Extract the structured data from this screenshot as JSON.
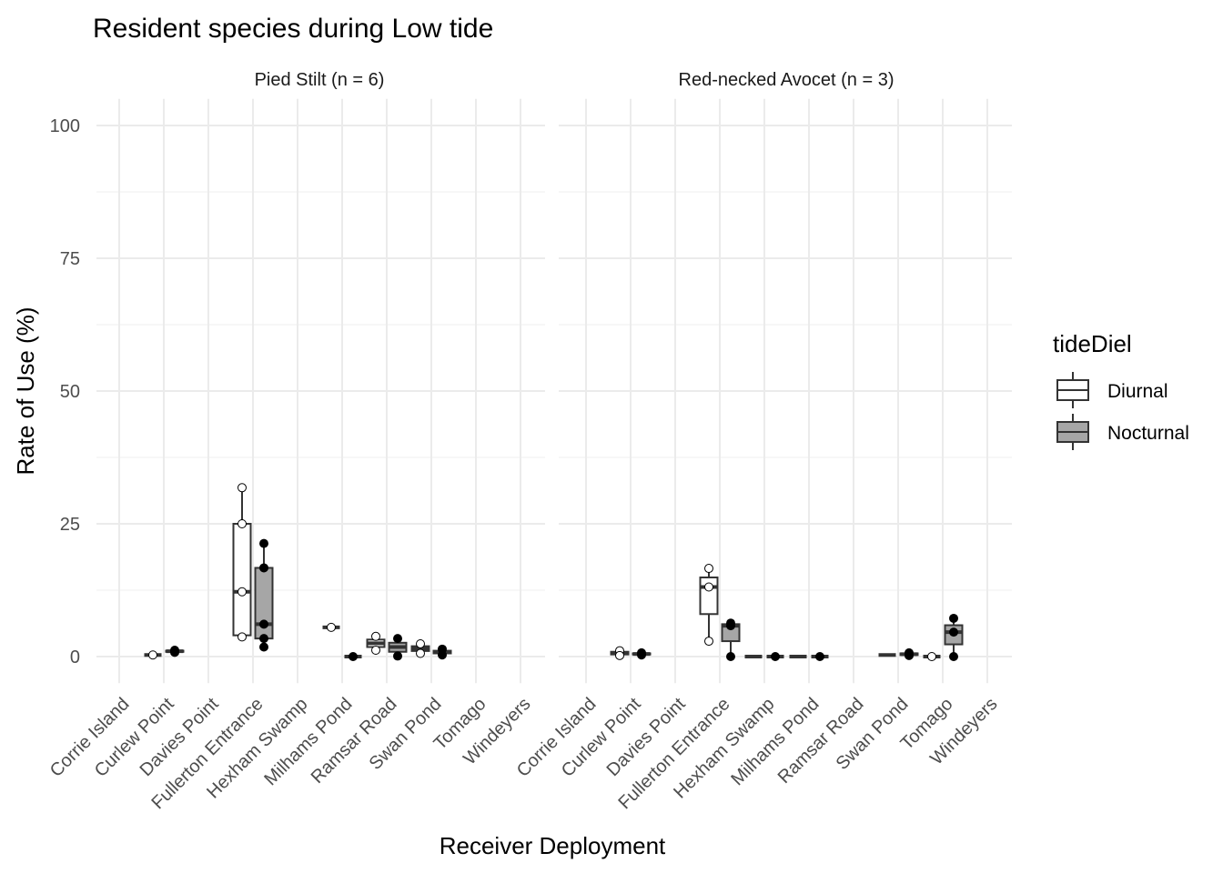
{
  "chart_data": {
    "type": "boxplot",
    "title": "Resident species during Low tide",
    "xlabel": "Receiver Deployment",
    "ylabel": "Rate of Use (%)",
    "ylim": [
      -5,
      105
    ],
    "yticks": [
      0,
      25,
      50,
      75,
      100
    ],
    "ytick_labels": [
      "0",
      "25",
      "50",
      "75",
      "100"
    ],
    "grid": true,
    "categories": [
      "Corrie Island",
      "Curlew Point",
      "Davies Point",
      "Fullerton Entrance",
      "Hexham Swamp",
      "Milhams Pond",
      "Ramsar Road",
      "Swan Pond",
      "Tomago",
      "Windeyers"
    ],
    "legend": {
      "title": "tideDiel",
      "position": "right",
      "entries": [
        {
          "name": "Diurnal",
          "fill": "#ffffff"
        },
        {
          "name": "Nocturnal",
          "fill": "#a6a6a6"
        }
      ]
    },
    "panels": [
      {
        "label": "Pied Stilt (n = 6)",
        "groups": [
          {
            "category": "Curlew Point",
            "series": "Diurnal",
            "points": [
              0.3
            ],
            "box": {
              "min": 0.3,
              "q1": 0.3,
              "median": 0.3,
              "q3": 0.3,
              "max": 0.3
            }
          },
          {
            "category": "Curlew Point",
            "series": "Nocturnal",
            "points": [
              0.8,
              1.2
            ],
            "box": {
              "min": 0.8,
              "q1": 0.9,
              "median": 1.0,
              "q3": 1.1,
              "max": 1.2
            }
          },
          {
            "category": "Fullerton Entrance",
            "series": "Diurnal",
            "points": [
              31.8,
              25.0,
              12.2,
              3.7
            ],
            "box": {
              "min": 3.7,
              "q1": 4.0,
              "median": 12.2,
              "q3": 25.0,
              "max": 31.8
            }
          },
          {
            "category": "Fullerton Entrance",
            "series": "Nocturnal",
            "points": [
              21.3,
              16.7,
              6.1,
              3.4,
              1.8
            ],
            "box": {
              "min": 1.8,
              "q1": 3.4,
              "median": 6.1,
              "q3": 16.7,
              "max": 21.3
            }
          },
          {
            "category": "Milhams Pond",
            "series": "Diurnal",
            "points": [
              5.5
            ],
            "box": {
              "min": 5.5,
              "q1": 5.5,
              "median": 5.5,
              "q3": 5.5,
              "max": 5.5
            }
          },
          {
            "category": "Milhams Pond",
            "series": "Nocturnal",
            "points": [
              0.0
            ],
            "box": {
              "min": 0.0,
              "q1": 0.0,
              "median": 0.0,
              "q3": 0.0,
              "max": 0.0
            }
          },
          {
            "category": "Ramsar Road",
            "series": "Diurnal",
            "points": [
              3.8,
              1.2
            ],
            "box": {
              "min": 1.2,
              "q1": 1.8,
              "median": 2.5,
              "q3": 3.2,
              "max": 3.8
            }
          },
          {
            "category": "Ramsar Road",
            "series": "Nocturnal",
            "points": [
              3.4,
              0.1
            ],
            "box": {
              "min": 0.1,
              "q1": 0.9,
              "median": 1.8,
              "q3": 2.6,
              "max": 3.4
            }
          },
          {
            "category": "Swan Pond",
            "series": "Diurnal",
            "points": [
              2.4,
              0.6
            ],
            "box": {
              "min": 0.6,
              "q1": 1.05,
              "median": 1.5,
              "q3": 1.95,
              "max": 2.4
            }
          },
          {
            "category": "Swan Pond",
            "series": "Nocturnal",
            "points": [
              1.4,
              0.3
            ],
            "box": {
              "min": 0.3,
              "q1": 0.6,
              "median": 0.85,
              "q3": 1.1,
              "max": 1.4
            }
          }
        ]
      },
      {
        "label": "Red-necked Avocet (n = 3)",
        "groups": [
          {
            "category": "Curlew Point",
            "series": "Diurnal",
            "points": [
              1.1,
              0.2
            ],
            "box": {
              "min": 0.2,
              "q1": 0.4,
              "median": 0.65,
              "q3": 0.9,
              "max": 1.1
            }
          },
          {
            "category": "Curlew Point",
            "series": "Nocturnal",
            "points": [
              0.7,
              0.3
            ],
            "box": {
              "min": 0.3,
              "q1": 0.4,
              "median": 0.5,
              "q3": 0.6,
              "max": 0.7
            }
          },
          {
            "category": "Fullerton Entrance",
            "series": "Diurnal",
            "points": [
              16.6,
              13.1,
              2.9
            ],
            "box": {
              "min": 2.9,
              "q1": 8.0,
              "median": 13.1,
              "q3": 14.9,
              "max": 16.6
            }
          },
          {
            "category": "Fullerton Entrance",
            "series": "Nocturnal",
            "points": [
              6.3,
              5.8,
              0.0
            ],
            "box": {
              "min": 0.0,
              "q1": 2.9,
              "median": 5.8,
              "q3": 6.1,
              "max": 6.3
            }
          },
          {
            "category": "Hexham Swamp",
            "series": "Diurnal",
            "points": [],
            "box": {
              "min": 0.0,
              "q1": 0.0,
              "median": 0.0,
              "q3": 0.0,
              "max": 0.0
            }
          },
          {
            "category": "Hexham Swamp",
            "series": "Nocturnal",
            "points": [
              0.0
            ],
            "box": {
              "min": 0.0,
              "q1": 0.0,
              "median": 0.0,
              "q3": 0.0,
              "max": 0.0
            }
          },
          {
            "category": "Milhams Pond",
            "series": "Diurnal",
            "points": [],
            "box": {
              "min": 0.0,
              "q1": 0.0,
              "median": 0.0,
              "q3": 0.0,
              "max": 0.0
            }
          },
          {
            "category": "Milhams Pond",
            "series": "Nocturnal",
            "points": [
              0.0
            ],
            "box": {
              "min": 0.0,
              "q1": 0.0,
              "median": 0.0,
              "q3": 0.0,
              "max": 0.0
            }
          },
          {
            "category": "Swan Pond",
            "series": "Diurnal",
            "points": [],
            "box": {
              "min": 0.3,
              "q1": 0.3,
              "median": 0.3,
              "q3": 0.3,
              "max": 0.3
            }
          },
          {
            "category": "Swan Pond",
            "series": "Nocturnal",
            "points": [
              0.7,
              0.2
            ],
            "box": {
              "min": 0.2,
              "q1": 0.3,
              "median": 0.45,
              "q3": 0.6,
              "max": 0.7
            }
          },
          {
            "category": "Tomago",
            "series": "Diurnal",
            "points": [
              0.0
            ],
            "box": {
              "min": 0.0,
              "q1": 0.0,
              "median": 0.0,
              "q3": 0.0,
              "max": 0.0
            }
          },
          {
            "category": "Tomago",
            "series": "Nocturnal",
            "points": [
              7.2,
              4.6,
              0.0
            ],
            "box": {
              "min": 0.0,
              "q1": 2.3,
              "median": 4.6,
              "q3": 5.9,
              "max": 7.2
            }
          }
        ]
      }
    ]
  }
}
